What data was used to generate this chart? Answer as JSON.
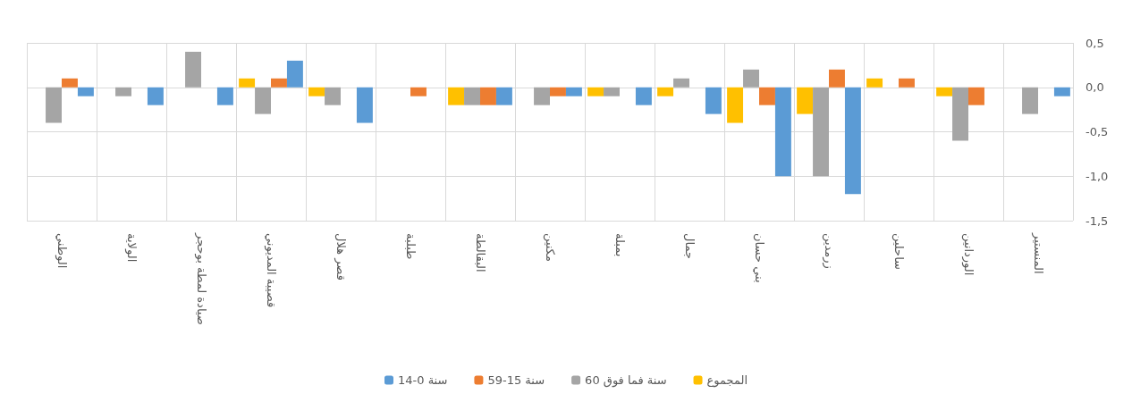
{
  "chart_data": {
    "type": "bar",
    "categories": [
      "الوطني",
      "الولاية",
      "صيادة لمطة بوحجر",
      "قصيبة المديوني",
      "قصر هلال",
      "طبلبة",
      "البقالطة",
      "مكنين",
      "بمبلة",
      "جمال",
      "بني حسان",
      "زرمدين",
      "ساحلين",
      "الوردانين",
      "المنستير"
    ],
    "series": [
      {
        "name": "14-0 سنة",
        "color": "#5b9bd5",
        "values": [
          -0.1,
          -0.2,
          -0.2,
          0.3,
          -0.4,
          0,
          -0.2,
          -0.1,
          -0.2,
          -0.3,
          -1.0,
          -1.2,
          0,
          0,
          -0.1
        ]
      },
      {
        "name": "59-15 سنة",
        "color": "#ed7d31",
        "values": [
          0.1,
          0,
          0,
          0.1,
          0,
          -0.1,
          -0.2,
          -0.1,
          0,
          0,
          -0.2,
          0.2,
          0.1,
          -0.2,
          0
        ]
      },
      {
        "name": "60 سنة فما فوق",
        "color": "#a5a5a5",
        "values": [
          -0.4,
          -0.1,
          0.4,
          -0.3,
          -0.2,
          0,
          -0.2,
          -0.2,
          -0.1,
          0.1,
          0.2,
          -1.0,
          0,
          -0.6,
          -0.3
        ]
      },
      {
        "name": "المجموع",
        "color": "#ffc000",
        "values": [
          0,
          0,
          0,
          0.1,
          -0.1,
          0,
          -0.2,
          0,
          -0.1,
          -0.1,
          -0.4,
          -0.3,
          0.1,
          -0.1,
          0
        ]
      }
    ],
    "ylim": [
      -1.5,
      0.5
    ],
    "yticks": [
      {
        "value": -1.5,
        "label": "-1,5"
      },
      {
        "value": -1.0,
        "label": "-1,0"
      },
      {
        "value": -0.5,
        "label": "-0,5"
      },
      {
        "value": 0,
        "label": "0,0"
      },
      {
        "value": 0.5,
        "label": "0,5"
      }
    ],
    "grid": true,
    "legend": "bottom"
  }
}
